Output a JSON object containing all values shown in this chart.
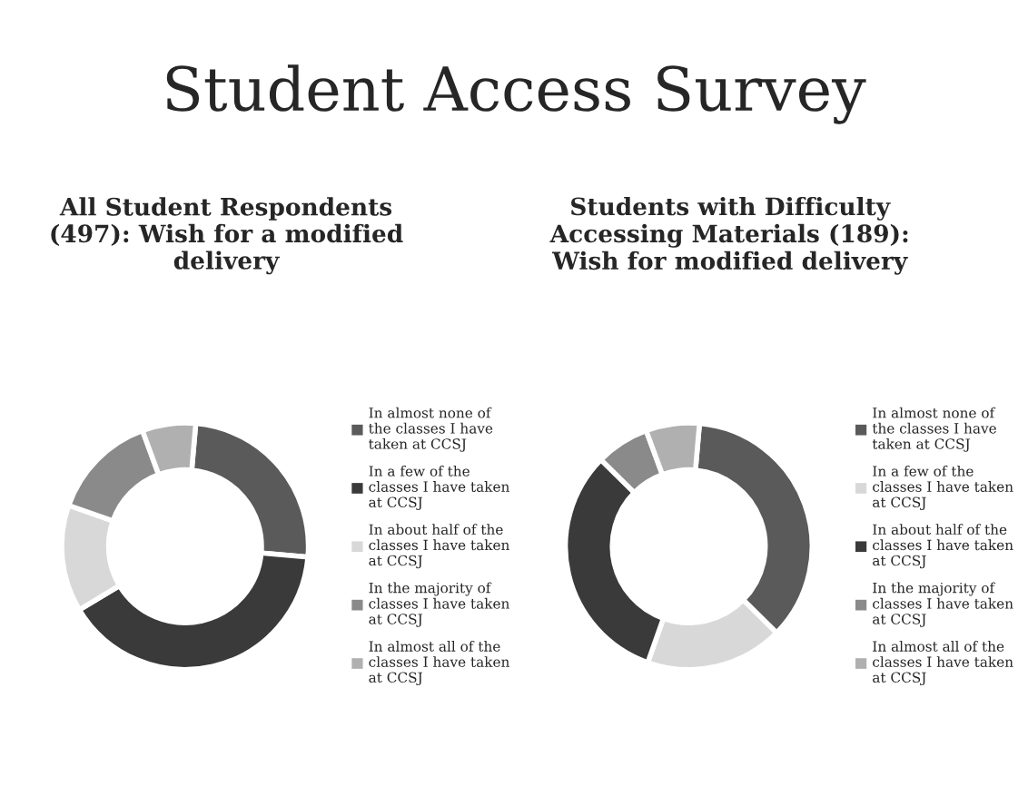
{
  "chart_data": [
    {
      "type": "donut",
      "title": "All Student Respondents\n(497): Wish for a modified\ndelivery",
      "annotations": [
        "Student Access Survey"
      ],
      "categories": [
        "In almost none of\nthe classes I have\ntaken at CCSJ",
        "In a few of the\nclasses I have taken\nat CCSJ",
        "In about half of the\nclasses I have taken\nat CCSJ",
        "In the majority of\nclasses I have taken\nat CCSJ",
        "In almost all of the\nclasses I have taken\nat CCSJ"
      ],
      "values": [
        25,
        40,
        14,
        14,
        7
      ],
      "colors": [
        "#5a5a5a",
        "#3a3a3a",
        "#d8d8d8",
        "#8a8a8a",
        "#b0b0b0"
      ],
      "legend": "right"
    },
    {
      "type": "donut",
      "title": "Students with Difficulty\nAccessing Materials (189):\nWish for modified delivery",
      "categories": [
        "In almost none of\nthe classes I have\ntaken at CCSJ",
        "In a few of the\nclasses I have taken\nat CCSJ",
        "In about half of the\nclasses I have taken\nat CCSJ",
        "In the majority of\nclasses I have taken\nat CCSJ",
        "In almost all of the\nclasses I have taken\nat CCSJ"
      ],
      "values": [
        36,
        18,
        32,
        7,
        7
      ],
      "colors": [
        "#5a5a5a",
        "#d8d8d8",
        "#3a3a3a",
        "#8a8a8a",
        "#b0b0b0"
      ],
      "legend": "right"
    }
  ]
}
